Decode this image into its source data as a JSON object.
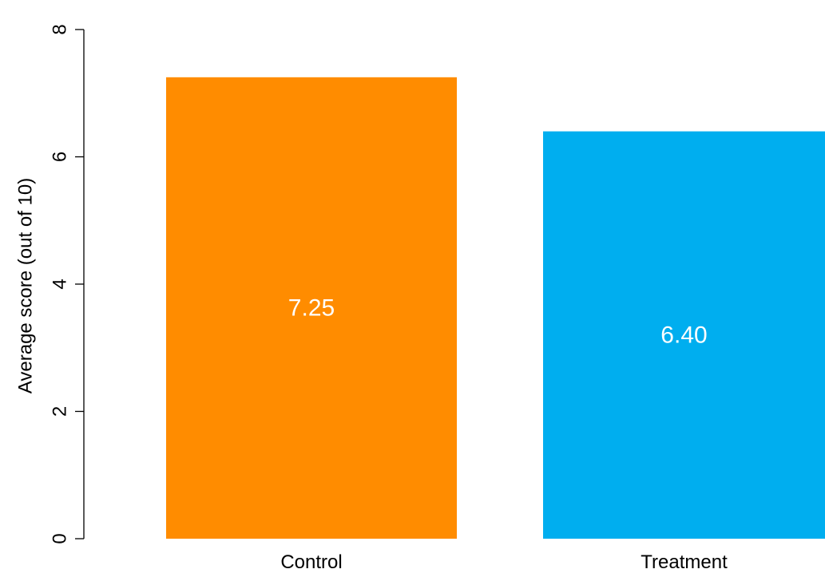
{
  "chart_data": {
    "type": "bar",
    "title": "",
    "xlabel": "",
    "ylabel": "Average score (out of 10)",
    "categories": [
      "Control",
      "Treatment"
    ],
    "values": [
      7.25,
      6.4
    ],
    "data_labels": [
      "7.25",
      "6.40"
    ],
    "colors": [
      "#FF8C00",
      "#00AEEF"
    ],
    "label_color": "#FFFFFF",
    "ylim": [
      0,
      8
    ],
    "yticks": [
      0,
      2,
      4,
      6,
      8
    ],
    "ytick_labels": [
      "0",
      "2",
      "4",
      "6",
      "8"
    ],
    "y_tick_label_orientation": "vertical",
    "grid": false,
    "legend": "none"
  }
}
